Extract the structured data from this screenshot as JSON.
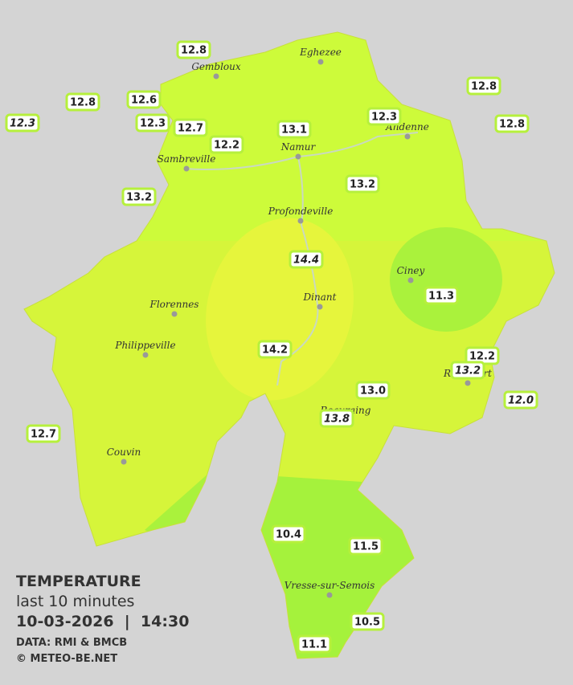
{
  "header": {
    "title": "TEMPERATURE",
    "subtitle": "last 10 minutes",
    "datetime": "10-03-2026  |  14:30",
    "source": "DATA: RMI & BMCB",
    "credit": "© METEO-BE.NET"
  },
  "cities": [
    {
      "label": "Eghezee"
    },
    {
      "label": "Gembloux"
    },
    {
      "label": "Andenne"
    },
    {
      "label": "Namur"
    },
    {
      "label": "Sambreville"
    },
    {
      "label": "Profondeville"
    },
    {
      "label": "Ciney"
    },
    {
      "label": "Florennes"
    },
    {
      "label": "Dinant"
    },
    {
      "label": "Philippeville"
    },
    {
      "label": "Beauraing"
    },
    {
      "label": "Rochefort"
    },
    {
      "label": "Couvin"
    },
    {
      "label": "Vresse-sur-Semois"
    }
  ],
  "stations": [
    {
      "value": "12.8"
    },
    {
      "value": "12.8"
    },
    {
      "value": "12.3"
    },
    {
      "value": "12.6"
    },
    {
      "value": "12.3"
    },
    {
      "value": "12.7"
    },
    {
      "value": "12.2"
    },
    {
      "value": "13.1"
    },
    {
      "value": "12.3"
    },
    {
      "value": "12.8"
    },
    {
      "value": "12.8"
    },
    {
      "value": "13.2"
    },
    {
      "value": "13.2"
    },
    {
      "value": "14.4"
    },
    {
      "value": "11.3"
    },
    {
      "value": "14.2"
    },
    {
      "value": "12.2"
    },
    {
      "value": "13.2"
    },
    {
      "value": "12.0"
    },
    {
      "value": "13.0"
    },
    {
      "value": "13.8"
    },
    {
      "value": "12.7"
    },
    {
      "value": "10.4"
    },
    {
      "value": "11.5"
    },
    {
      "value": "10.5"
    },
    {
      "value": "11.1"
    }
  ]
}
